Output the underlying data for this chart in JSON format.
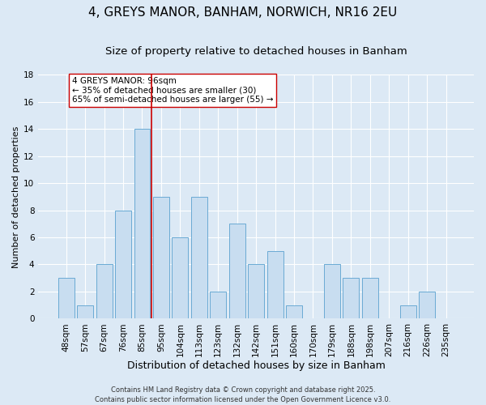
{
  "title": "4, GREYS MANOR, BANHAM, NORWICH, NR16 2EU",
  "subtitle": "Size of property relative to detached houses in Banham",
  "xlabel": "Distribution of detached houses by size in Banham",
  "ylabel": "Number of detached properties",
  "bar_labels": [
    "48sqm",
    "57sqm",
    "67sqm",
    "76sqm",
    "85sqm",
    "95sqm",
    "104sqm",
    "113sqm",
    "123sqm",
    "132sqm",
    "142sqm",
    "151sqm",
    "160sqm",
    "170sqm",
    "179sqm",
    "188sqm",
    "198sqm",
    "207sqm",
    "216sqm",
    "226sqm",
    "235sqm"
  ],
  "bar_values": [
    3,
    1,
    4,
    8,
    14,
    9,
    6,
    9,
    2,
    7,
    4,
    5,
    1,
    0,
    4,
    3,
    3,
    0,
    1,
    2,
    0
  ],
  "bar_color": "#c8ddf0",
  "bar_edgecolor": "#6aaad4",
  "background_color": "#dce9f5",
  "grid_color": "#ffffff",
  "vline_x_index": 4.5,
  "vline_color": "#cc0000",
  "annotation_text": "4 GREYS MANOR: 96sqm\n← 35% of detached houses are smaller (30)\n65% of semi-detached houses are larger (55) →",
  "annotation_box_facecolor": "#ffffff",
  "annotation_box_edgecolor": "#cc0000",
  "footer_line1": "Contains HM Land Registry data © Crown copyright and database right 2025.",
  "footer_line2": "Contains public sector information licensed under the Open Government Licence v3.0.",
  "ylim": [
    0,
    18
  ],
  "yticks": [
    0,
    2,
    4,
    6,
    8,
    10,
    12,
    14,
    16,
    18
  ],
  "title_fontsize": 11,
  "subtitle_fontsize": 9.5,
  "xlabel_fontsize": 9,
  "ylabel_fontsize": 8,
  "tick_fontsize": 7.5,
  "annotation_fontsize": 7.5,
  "footer_fontsize": 6
}
